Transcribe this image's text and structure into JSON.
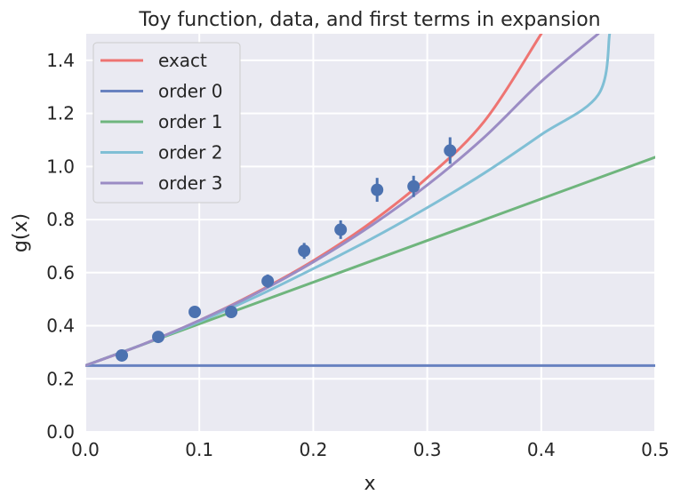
{
  "chart_data": {
    "type": "line",
    "title": "Toy function, data, and first terms in expansion",
    "xlabel": "x",
    "ylabel": "g(x)",
    "xlim": [
      0.0,
      0.5
    ],
    "ylim": [
      0.0,
      1.5
    ],
    "xticks": [
      "0.0",
      "0.1",
      "0.2",
      "0.3",
      "0.4",
      "0.5"
    ],
    "yticks": [
      "0.0",
      "0.2",
      "0.4",
      "0.6",
      "0.8",
      "1.0",
      "1.2",
      "1.4"
    ],
    "grid": true,
    "legend_position": "upper-left",
    "series": [
      {
        "name": "exact",
        "color": "#ee7472",
        "x": [
          0.0,
          0.05,
          0.1,
          0.15,
          0.2,
          0.25,
          0.3,
          0.35,
          0.4
        ],
        "y": [
          0.25,
          0.329,
          0.42,
          0.525,
          0.645,
          0.787,
          0.958,
          1.17,
          1.5
        ]
      },
      {
        "name": "order 0",
        "color": "#6882c0",
        "x": [
          0.0,
          0.5
        ],
        "y": [
          0.25,
          0.25
        ]
      },
      {
        "name": "order 1",
        "color": "#6fb57d",
        "x": [
          0.0,
          0.5
        ],
        "y": [
          0.25,
          1.035
        ]
      },
      {
        "name": "order 2",
        "color": "#80bfd5",
        "x": [
          0.0,
          0.05,
          0.1,
          0.15,
          0.2,
          0.25,
          0.3,
          0.35,
          0.4,
          0.45,
          0.46
        ],
        "y": [
          0.25,
          0.329,
          0.415,
          0.51,
          0.615,
          0.725,
          0.845,
          0.975,
          1.12,
          1.27,
          1.5
        ]
      },
      {
        "name": "order 3",
        "color": "#9b8cc4",
        "x": [
          0.0,
          0.05,
          0.1,
          0.15,
          0.2,
          0.25,
          0.3,
          0.35,
          0.4,
          0.45,
          0.435
        ],
        "y": [
          0.25,
          0.329,
          0.42,
          0.522,
          0.64,
          0.775,
          0.93,
          1.11,
          1.32,
          1.5,
          1.5
        ]
      }
    ],
    "data_points": {
      "color": "#4c72b0",
      "points": [
        {
          "x": 0.032,
          "y": 0.288,
          "err": 0.015
        },
        {
          "x": 0.064,
          "y": 0.358,
          "err": 0.015
        },
        {
          "x": 0.096,
          "y": 0.452,
          "err": 0.018
        },
        {
          "x": 0.128,
          "y": 0.452,
          "err": 0.015
        },
        {
          "x": 0.16,
          "y": 0.568,
          "err": 0.025
        },
        {
          "x": 0.192,
          "y": 0.682,
          "err": 0.03
        },
        {
          "x": 0.224,
          "y": 0.762,
          "err": 0.035
        },
        {
          "x": 0.256,
          "y": 0.912,
          "err": 0.045
        },
        {
          "x": 0.288,
          "y": 0.925,
          "err": 0.04
        },
        {
          "x": 0.32,
          "y": 1.06,
          "err": 0.05
        }
      ]
    }
  }
}
